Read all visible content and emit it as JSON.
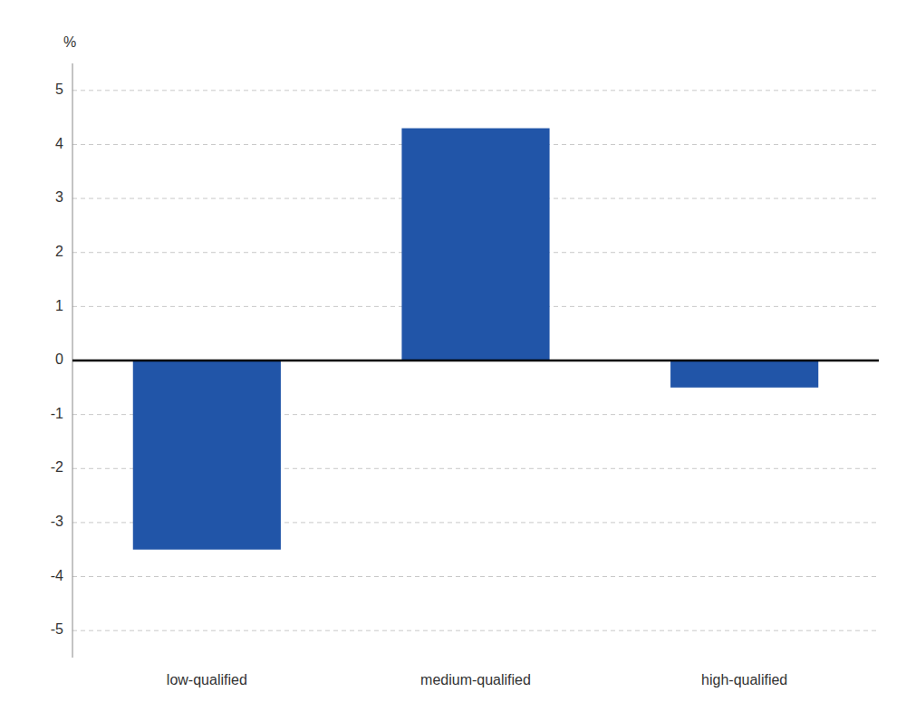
{
  "chart_data": {
    "type": "bar",
    "ylabel": "%",
    "categories": [
      "low-qualified",
      "medium-qualified",
      "high-qualified"
    ],
    "values": [
      -3.5,
      4.3,
      -0.5
    ],
    "color": "#2155A8",
    "ylim": [
      -5.5,
      5.5
    ],
    "yticks": [
      -5,
      -4,
      -3,
      -2,
      -1,
      0,
      1,
      2,
      3,
      4,
      5
    ],
    "grid": true
  }
}
